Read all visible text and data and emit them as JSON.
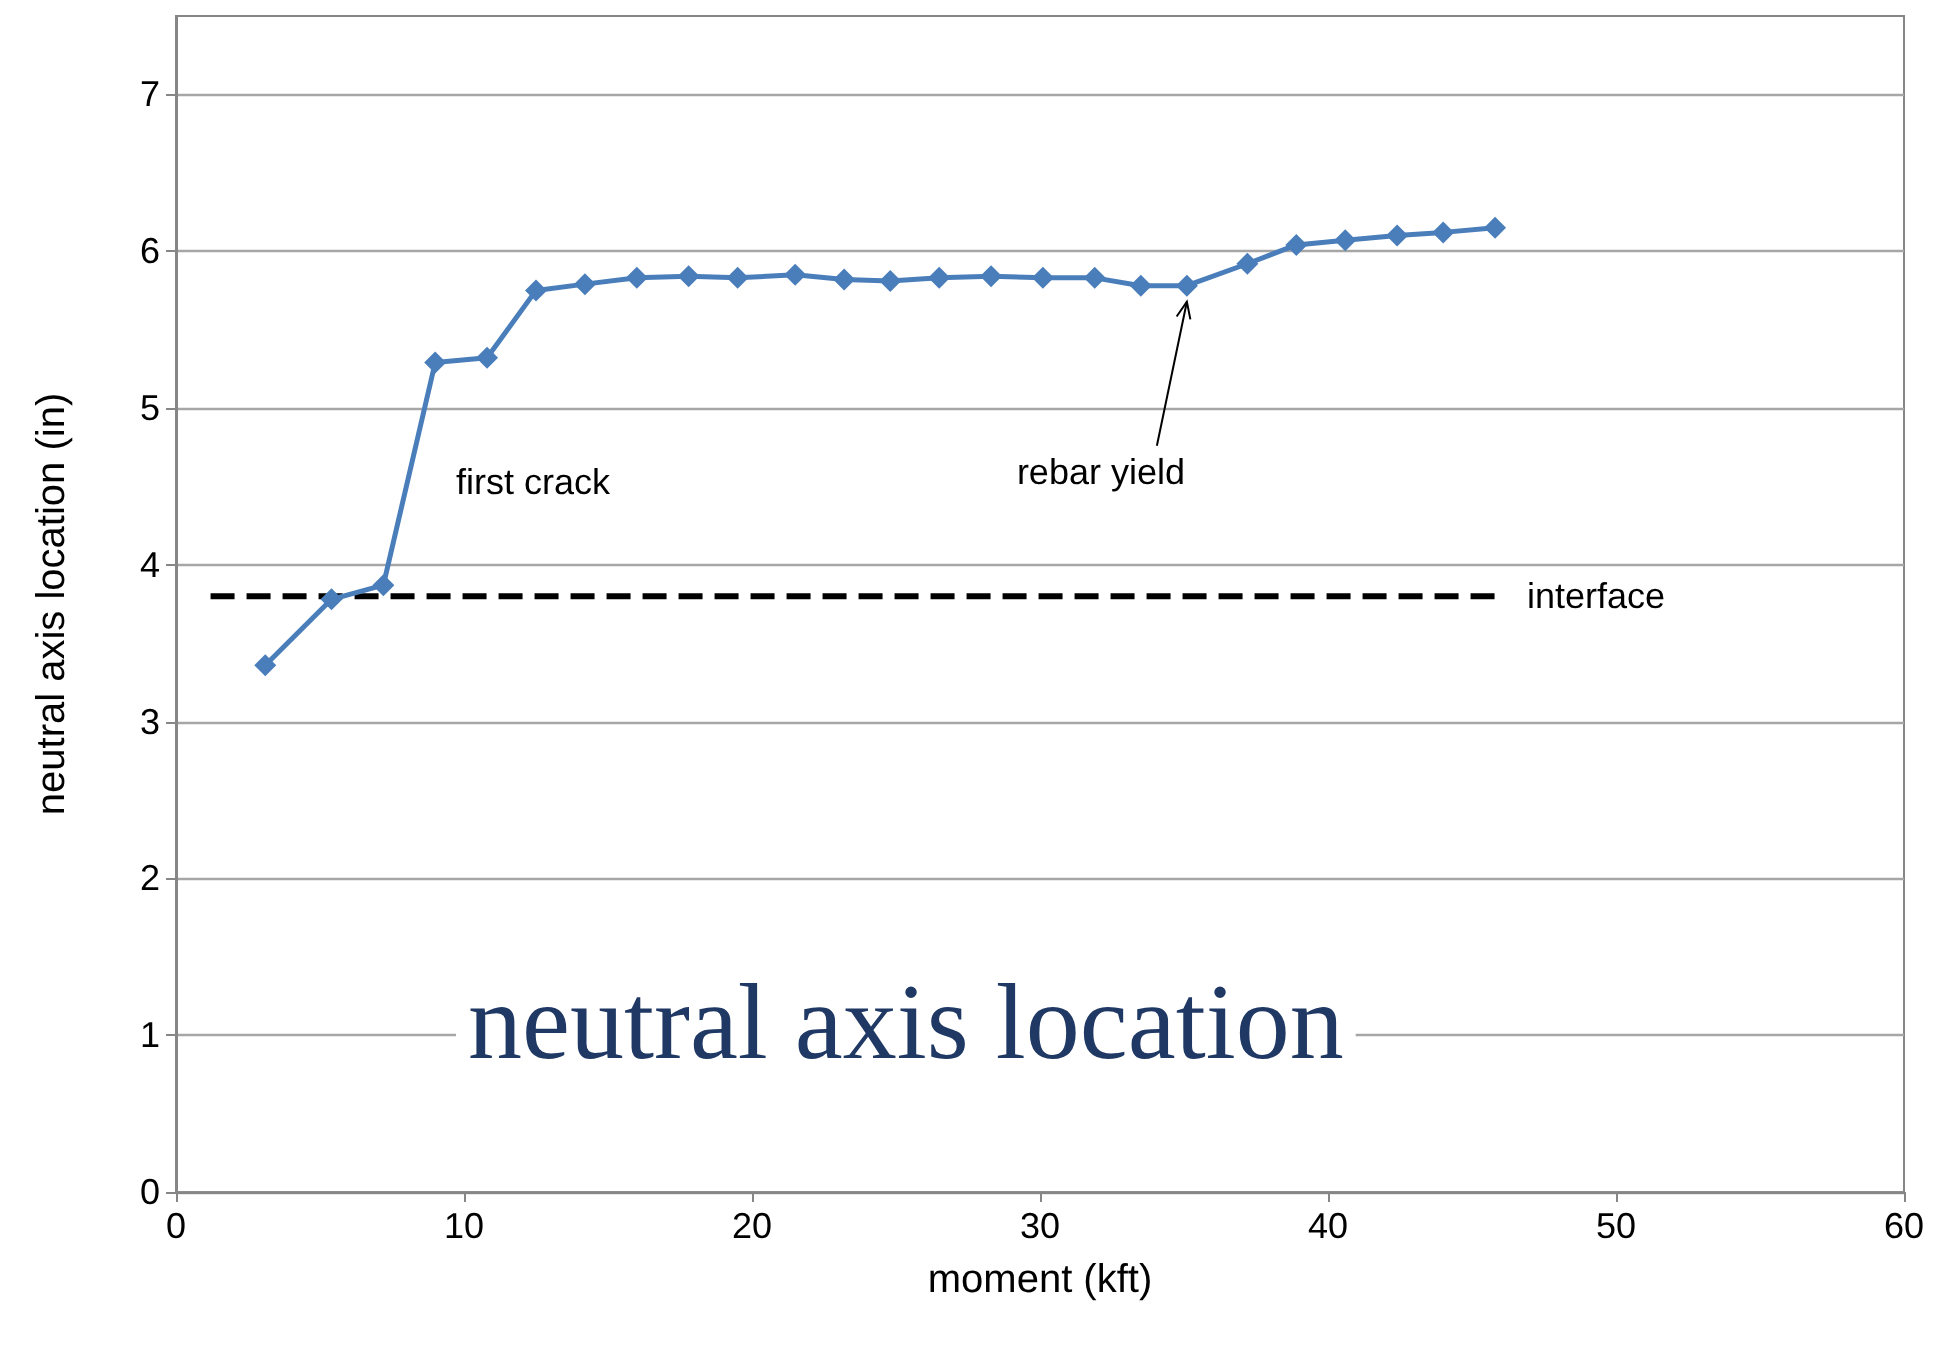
{
  "chart_data": {
    "type": "line",
    "title": "neutral axis location",
    "xlabel": "moment (kft)",
    "ylabel": "neutral axis location (in)",
    "series": [
      {
        "color": "#4a7ebb",
        "marker": "diamond",
        "x": [
          3.1,
          5.4,
          7.2,
          9.0,
          10.8,
          12.5,
          14.2,
          16.0,
          17.8,
          19.5,
          21.5,
          23.2,
          24.8,
          26.5,
          28.3,
          30.1,
          31.9,
          33.5,
          35.1,
          37.2,
          38.9,
          40.6,
          42.4,
          44.0,
          45.8
        ],
        "values": [
          3.36,
          3.78,
          3.87,
          5.29,
          5.32,
          5.75,
          5.79,
          5.83,
          5.84,
          5.83,
          5.85,
          5.82,
          5.81,
          5.83,
          5.84,
          5.83,
          5.83,
          5.78,
          5.78,
          5.92,
          6.04,
          6.07,
          6.1,
          6.12,
          6.15
        ]
      },
      {
        "name": "interface",
        "color": "#000000",
        "marker": "none",
        "line_style": "dashed",
        "x": [
          1.2,
          45.8
        ],
        "values": [
          3.8,
          3.8
        ]
      }
    ],
    "annotations": [
      "first crack",
      {
        "text": "rebar yield",
        "x": 35.1,
        "y": 5.78
      }
    ],
    "xlim": [
      0,
      60
    ],
    "xticks": [
      0,
      10,
      20,
      30,
      40,
      50,
      60
    ],
    "ylim": [
      0,
      7.5
    ],
    "yticks": [
      0,
      1,
      2,
      3,
      4,
      5,
      6,
      7
    ],
    "grid": "y",
    "legend": false
  }
}
